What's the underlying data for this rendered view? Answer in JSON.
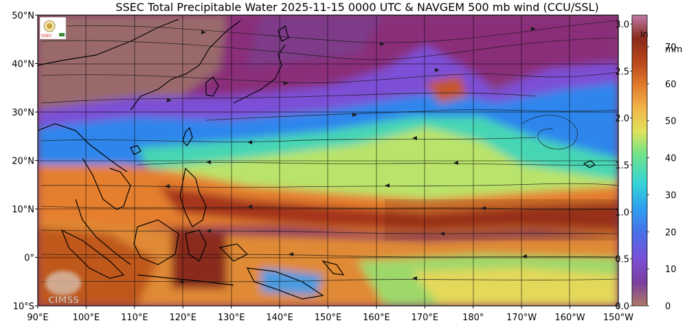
{
  "title": "SSEC Total Precipitable Water  2025-11-15 0000 UTC & NAVGEM 500 mb wind (CCU/SSL)",
  "lat_labels": [
    "50°N",
    "40°N",
    "30°N",
    "20°N",
    "10°N",
    "0°",
    "10°S"
  ],
  "lon_labels": [
    "90°E",
    "100°E",
    "110°E",
    "120°E",
    "130°E",
    "140°E",
    "150°E",
    "160°E",
    "170°E",
    "180°",
    "170°W",
    "160°W",
    "150°W"
  ],
  "colorbar": {
    "inch_unit": "in",
    "mm_unit": "mm",
    "inch_ticks": [
      "3.0",
      "2.5",
      "2.0",
      "1.5",
      "1.0",
      "0.5",
      "0.0"
    ],
    "mm_ticks": [
      "70",
      "60",
      "50",
      "40",
      "30",
      "20",
      "10",
      "0"
    ],
    "colors": [
      "#b07866",
      "#7a3fa0",
      "#7b4fd6",
      "#4a6fe8",
      "#2e9cf0",
      "#34d3d8",
      "#6fe38a",
      "#dfe35a",
      "#f2b54a",
      "#e07a2c",
      "#b8461c",
      "#8a2a1a",
      "#c07aa8"
    ]
  },
  "watermark": "CIMSS",
  "logo_text": "SSEC"
}
